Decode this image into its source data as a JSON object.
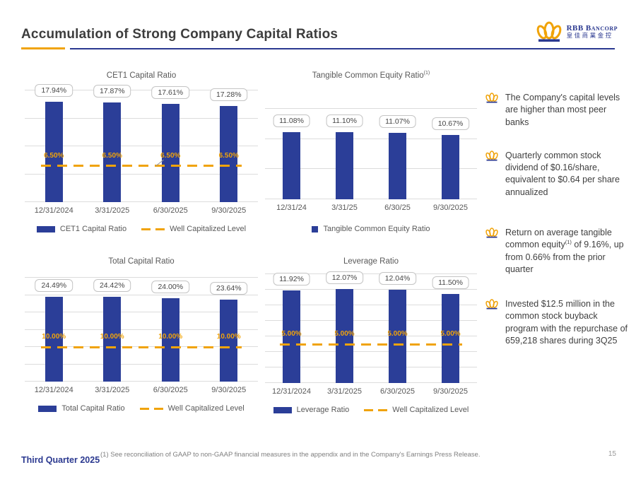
{
  "slide": {
    "title": "Accumulation of Strong Company Capital Ratios",
    "footer_left": "Third Quarter 2025",
    "footnote": "(1)  See reconciliation of GAAP to non-GAAP financial measures in the appendix and in the Company's Earnings Press Release.",
    "page_number": "15"
  },
  "logo": {
    "name": "RBB Bancorp",
    "cn": "皇佳商業金控"
  },
  "colors": {
    "bar_blue": "#2B3E98",
    "gold": "#F0A30A",
    "header_blue": "#2B3990"
  },
  "bullets": [
    {
      "text1": "The Company's capital levels are higher than most peer banks",
      "sup": "",
      "text2": ""
    },
    {
      "text1": "Quarterly common stock dividend of $0.16/share, equivalent to $0.64 per share annualized",
      "sup": "",
      "text2": ""
    },
    {
      "text1": "Return on average tangible common equity",
      "sup": "(1)",
      "text2": " of 9.16%, up from 0.66% from the prior quarter"
    },
    {
      "text1": "Invested $12.5 million in the common stock buyback program with the repurchase of 659,218 shares during 3Q25",
      "sup": "",
      "text2": ""
    }
  ],
  "chart_data": [
    {
      "type": "bar",
      "title": "CET1 Capital Ratio",
      "title_sup": "",
      "categories": [
        "12/31/2024",
        "3/31/2025",
        "6/30/2025",
        "9/30/2025"
      ],
      "values": [
        17.94,
        17.87,
        17.61,
        17.28
      ],
      "labels": [
        "17.94%",
        "17.87%",
        "17.61%",
        "17.28%"
      ],
      "ymax": 20,
      "grid_step": 5,
      "well_level": 6.5,
      "well_label": "6.50%",
      "callout": true,
      "legend": [
        {
          "swatch": "bar",
          "label": "CET1 Capital Ratio"
        },
        {
          "swatch": "dash",
          "label": "Well Capitalized Level"
        }
      ]
    },
    {
      "type": "bar",
      "title": "Tangible Common Equity Ratio",
      "title_sup": "(1)",
      "categories": [
        "12/31/24",
        "3/31/25",
        "6/30/25",
        "9/30/2025"
      ],
      "values": [
        11.08,
        11.1,
        11.07,
        10.67
      ],
      "labels": [
        "11.08%",
        "11.10%",
        "11.07%",
        "10.67%"
      ],
      "ymax": 15,
      "grid_step": 5,
      "well_level": null,
      "well_label": "",
      "callout": false,
      "legend": [
        {
          "swatch": "square",
          "label": "Tangible Common Equity Ratio"
        }
      ]
    },
    {
      "type": "bar",
      "title": "Total Capital Ratio",
      "title_sup": "",
      "categories": [
        "12/31/2024",
        "3/31/2025",
        "6/30/2025",
        "9/30/2025"
      ],
      "values": [
        24.49,
        24.42,
        24.0,
        23.64
      ],
      "labels": [
        "24.49%",
        "24.42%",
        "24.00%",
        "23.64%"
      ],
      "ymax": 30,
      "grid_step": 5,
      "well_level": 10.0,
      "well_label": "10.00%",
      "callout": false,
      "legend": [
        {
          "swatch": "bar",
          "label": "Total Capital Ratio"
        },
        {
          "swatch": "dash",
          "label": "Well Capitalized Level"
        }
      ]
    },
    {
      "type": "bar",
      "title": "Leverage Ratio",
      "title_sup": "",
      "categories": [
        "12/31/2024",
        "3/31/2025",
        "6/30/2025",
        "9/30/2025"
      ],
      "values": [
        11.92,
        12.07,
        12.04,
        11.5
      ],
      "labels": [
        "11.92%",
        "12.07%",
        "12.04%",
        "11.50%"
      ],
      "ymax": 14,
      "grid_step": 2,
      "well_level": 5.0,
      "well_label": "5.00%",
      "callout": false,
      "legend": [
        {
          "swatch": "bar",
          "label": "Leverage Ratio"
        },
        {
          "swatch": "dash",
          "label": "Well Capitalized Level"
        }
      ]
    }
  ]
}
